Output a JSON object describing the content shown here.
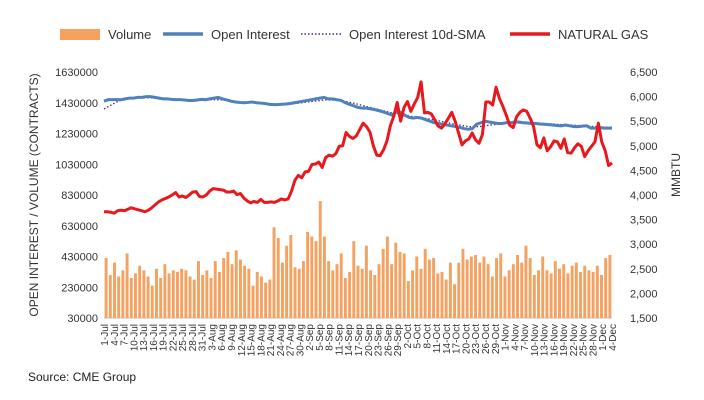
{
  "source": "Source: CME Group",
  "chart_data": {
    "type": "bar+line",
    "legend": {
      "placement": "top",
      "entries": [
        {
          "label": "Volume",
          "color": "#F4A261",
          "kind": "bar"
        },
        {
          "label": "Open Interest",
          "color": "#4F81BD",
          "kind": "line"
        },
        {
          "label": "Open Interest 10d-SMA",
          "color": "#4B2B6F",
          "kind": "dotted"
        },
        {
          "label": "NATURAL GAS",
          "color": "#E8191C",
          "kind": "line"
        }
      ]
    },
    "ylabel_left": "OPEN INTEREST / VOLUME (CONTRACTS)",
    "ylabel_right": "MMBTU",
    "left_ticks": [
      "30000",
      "230000",
      "430000",
      "630000",
      "830000",
      "1030000",
      "1230000",
      "1430000",
      "1630000"
    ],
    "right_ticks": [
      "1,500",
      "2,000",
      "2,500",
      "3,000",
      "3,500",
      "4,000",
      "4,500",
      "5,000",
      "5,500",
      "6,000",
      "6,500"
    ],
    "x_tick_labels": [
      "1-Jul",
      "4-Jul",
      "7-Jul",
      "10-Jul",
      "13-Jul",
      "16-Jul",
      "19-Jul",
      "22-Jul",
      "25-Jul",
      "28-Jul",
      "31-Jul",
      "3-Aug",
      "6-Aug",
      "9-Aug",
      "12-Aug",
      "15-Aug",
      "18-Aug",
      "21-Aug",
      "24-Aug",
      "27-Aug",
      "30-Aug",
      "2-Sep",
      "5-Sep",
      "8-Sep",
      "11-Sep",
      "14-Sep",
      "17-Sep",
      "20-Sep",
      "23-Sep",
      "26-Sep",
      "29-Sep",
      "2-Oct",
      "5-Oct",
      "8-Oct",
      "11-Oct",
      "14-Oct",
      "17-Oct",
      "20-Oct",
      "23-Oct",
      "26-Oct",
      "29-Oct",
      "1-Nov",
      "4-Nov",
      "7-Nov",
      "10-Nov",
      "13-Nov",
      "16-Nov",
      "19-Nov",
      "22-Nov",
      "25-Nov",
      "28-Nov",
      "1-Dec",
      "4-Dec"
    ],
    "left_range": [
      30000,
      1630000
    ],
    "right_range": [
      1500,
      6500
    ],
    "volume": [
      420000,
      310000,
      390000,
      300000,
      340000,
      450000,
      290000,
      320000,
      370000,
      340000,
      300000,
      240000,
      350000,
      290000,
      380000,
      320000,
      340000,
      330000,
      350000,
      340000,
      300000,
      280000,
      400000,
      310000,
      340000,
      290000,
      400000,
      330000,
      420000,
      460000,
      380000,
      470000,
      410000,
      370000,
      350000,
      240000,
      330000,
      300000,
      260000,
      280000,
      620000,
      550000,
      390000,
      500000,
      570000,
      360000,
      350000,
      400000,
      590000,
      560000,
      530000,
      790000,
      560000,
      400000,
      340000,
      380000,
      450000,
      290000,
      330000,
      530000,
      370000,
      350000,
      500000,
      340000,
      310000,
      380000,
      480000,
      560000,
      380000,
      520000,
      460000,
      450000,
      270000,
      340000,
      430000,
      350000,
      480000,
      410000,
      420000,
      320000,
      330000,
      280000,
      390000,
      250000,
      390000,
      480000,
      410000,
      430000,
      440000,
      390000,
      430000,
      380000,
      300000,
      420000,
      450000,
      300000,
      340000,
      380000,
      440000,
      390000,
      500000,
      420000,
      310000,
      340000,
      430000,
      340000,
      320000,
      400000,
      350000,
      380000,
      320000,
      370000,
      390000,
      330000,
      370000,
      340000,
      330000,
      370000,
      310000,
      420000,
      440000
    ],
    "open_interest": [
      1440000,
      1450000,
      1450000,
      1450000,
      1450000,
      1455000,
      1460000,
      1460000,
      1465000,
      1465000,
      1470000,
      1470000,
      1465000,
      1460000,
      1455000,
      1455000,
      1452000,
      1450000,
      1450000,
      1448000,
      1445000,
      1445000,
      1448000,
      1452000,
      1450000,
      1455000,
      1460000,
      1465000,
      1455000,
      1448000,
      1440000,
      1435000,
      1432000,
      1430000,
      1432000,
      1435000,
      1430000,
      1428000,
      1425000,
      1420000,
      1418000,
      1418000,
      1420000,
      1422000,
      1425000,
      1430000,
      1435000,
      1440000,
      1445000,
      1450000,
      1455000,
      1460000,
      1465000,
      1455000,
      1455000,
      1450000,
      1445000,
      1430000,
      1420000,
      1410000,
      1400000,
      1395000,
      1395000,
      1390000,
      1385000,
      1378000,
      1370000,
      1360000,
      1350000,
      1370000,
      1368000,
      1350000,
      1335000,
      1330000,
      1335000,
      1330000,
      1320000,
      1310000,
      1300000,
      1295000,
      1290000,
      1285000,
      1280000,
      1275000,
      1270000,
      1262000,
      1258000,
      1262000,
      1290000,
      1300000,
      1310000,
      1305000,
      1300000,
      1295000,
      1295000,
      1300000,
      1300000,
      1305000,
      1305000,
      1300000,
      1298000,
      1295000,
      1295000,
      1292000,
      1290000,
      1288000,
      1285000,
      1282000,
      1280000,
      1285000,
      1280000,
      1275000,
      1275000,
      1278000,
      1280000,
      1265000,
      1265000,
      1270000,
      1265000,
      1265000,
      1265000
    ],
    "oi_sma": [
      1390000,
      1405000,
      1420000,
      1435000,
      1445000,
      1450000,
      1455000,
      1460000,
      1462000,
      1462000,
      1463000,
      1462000,
      1460000,
      1458000,
      1456000,
      1455000,
      1454000,
      1452000,
      1450000,
      1449000,
      1448000,
      1447000,
      1447000,
      1448000,
      1449000,
      1450000,
      1450000,
      1450000,
      1448000,
      1446000,
      1443000,
      1440000,
      1437000,
      1434000,
      1432000,
      1430000,
      1429000,
      1428000,
      1426000,
      1424000,
      1422000,
      1421000,
      1421000,
      1422000,
      1423000,
      1425000,
      1428000,
      1431000,
      1435000,
      1438000,
      1441000,
      1444000,
      1448000,
      1448000,
      1447000,
      1445000,
      1442000,
      1438000,
      1433000,
      1427000,
      1420000,
      1413000,
      1406000,
      1399000,
      1392000,
      1385000,
      1378000,
      1371000,
      1364000,
      1360000,
      1356000,
      1351000,
      1345000,
      1340000,
      1337000,
      1333000,
      1328000,
      1323000,
      1318000,
      1313000,
      1307000,
      1301000,
      1295000,
      1290000,
      1285000,
      1280000,
      1276000,
      1273000,
      1274000,
      1276000,
      1280000,
      1284000,
      1287000,
      1290000,
      1292000,
      1294000,
      1296000,
      1297000,
      1298000,
      1299000,
      1299000,
      1298000,
      1297000,
      1296000,
      1295000,
      1294000,
      1292000,
      1290000,
      1288000,
      1287000,
      1286000,
      1284000,
      1282000,
      1280000,
      1279000,
      1277000,
      1275000,
      1274000,
      1272000,
      1271000,
      1270000
    ],
    "natural_gas": [
      3660,
      3660,
      3650,
      3630,
      3680,
      3690,
      3680,
      3710,
      3740,
      3720,
      3700,
      3680,
      3660,
      3690,
      3740,
      3800,
      3860,
      3900,
      3930,
      3960,
      4000,
      4050,
      3960,
      3980,
      3950,
      4000,
      4060,
      4070,
      3970,
      3960,
      4000,
      4080,
      4130,
      4120,
      4110,
      4100,
      4060,
      4060,
      4080,
      4010,
      4030,
      3940,
      3880,
      3840,
      3870,
      3850,
      3910,
      3850,
      3850,
      3860,
      3850,
      3880,
      3920,
      3900,
      3920,
      4080,
      4300,
      4400,
      4350,
      4470,
      4480,
      4620,
      4630,
      4670,
      4560,
      4760,
      4810,
      4790,
      4840,
      4990,
      5000,
      5270,
      5190,
      5150,
      5200,
      5330,
      5460,
      5390,
      5280,
      5000,
      4810,
      4800,
      4920,
      5100,
      5410,
      5600,
      5880,
      5500,
      5780,
      5900,
      5700,
      5850,
      5980,
      6300,
      5670,
      5680,
      5650,
      5530,
      5400,
      5360,
      5450,
      5560,
      5680,
      5500,
      5260,
      5020,
      5100,
      5140,
      5260,
      5120,
      5050,
      5230,
      5890,
      5890,
      5830,
      6190,
      5960,
      5800,
      5620,
      5420,
      5370,
      5590,
      5680,
      5730,
      5700,
      5560,
      5390,
      5020,
      4960,
      5160,
      4900,
      4980,
      5100,
      5080,
      4950,
      5140,
      4860,
      4850,
      4960,
      5040,
      4990,
      4780,
      4900,
      4990,
      5080,
      5460,
      5080,
      4900,
      4600,
      4650
    ],
    "colors": {
      "volume": "#F4A261",
      "open_interest": "#4F81BD",
      "oi_sma": "#4B2B6F",
      "natural_gas": "#E8191C",
      "grid": "#E0E0E0",
      "axis": "#333333"
    }
  }
}
